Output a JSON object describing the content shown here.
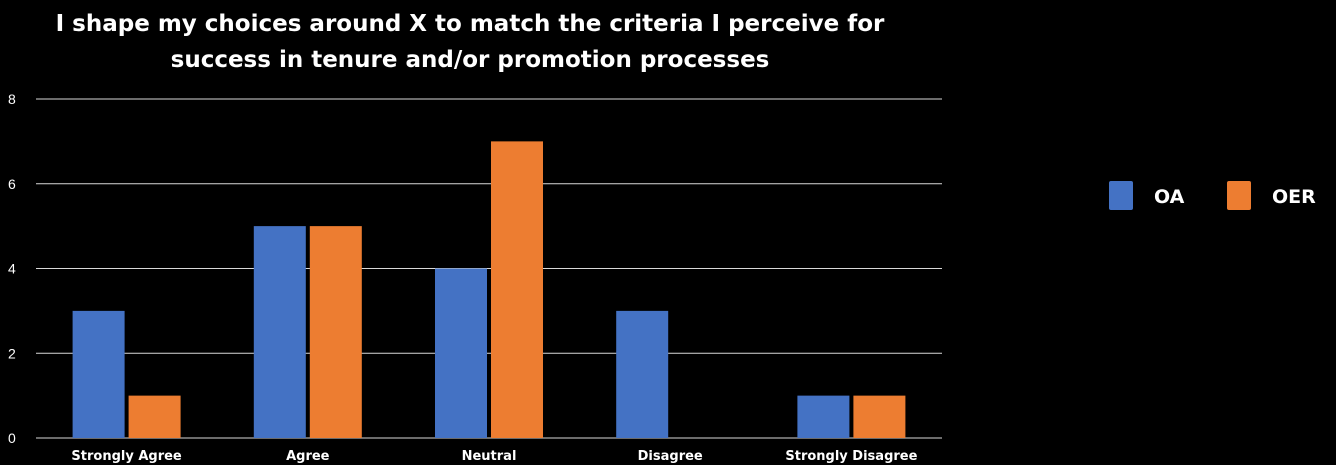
{
  "chart_data": {
    "type": "bar",
    "title_lines": [
      "I shape my choices around X to match the criteria I perceive for",
      "success in tenure and/or promotion processes"
    ],
    "categories": [
      "Strongly Agree",
      "Agree",
      "Neutral",
      "Disagree",
      "Strongly Disagree"
    ],
    "series": [
      {
        "name": "OA",
        "values": [
          3,
          5,
          4,
          3,
          1
        ],
        "color": "#4472C4"
      },
      {
        "name": "OER",
        "values": [
          1,
          5,
          7,
          0,
          1
        ],
        "color": "#ED7D31"
      }
    ],
    "yticks": [
      0,
      2,
      4,
      6,
      8
    ],
    "ylim": [
      0,
      8
    ],
    "grid": true,
    "legend_position": "right",
    "xlabel": "",
    "ylabel": ""
  },
  "colors": {
    "background": "#000000",
    "text": "#ffffff",
    "gridline": "#d9d9d9"
  }
}
